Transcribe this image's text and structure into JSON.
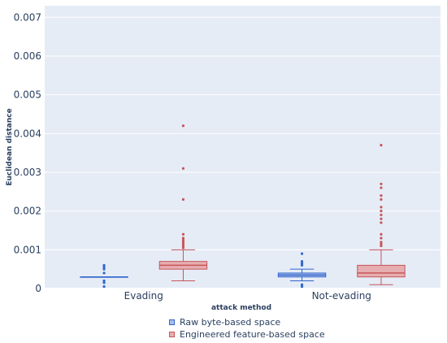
{
  "chart_data": {
    "type": "box",
    "xlabel": "attack method",
    "ylabel": "Euclidean distance",
    "categories": [
      "Evading",
      "Not-evading"
    ],
    "ylim": [
      0,
      0.0073
    ],
    "yticks": [
      0,
      0.001,
      0.002,
      0.003,
      0.004,
      0.005,
      0.006,
      0.007
    ],
    "ytick_labels": [
      "0",
      "0.001",
      "0.002",
      "0.003",
      "0.004",
      "0.005",
      "0.006",
      "0.007"
    ],
    "grid": true,
    "legend_position": "bottom-center",
    "series": [
      {
        "name": "Raw byte-based space",
        "line_color": "#3366cc",
        "fill_color": "#a9bde8",
        "boxes": [
          {
            "category": "Evading",
            "q1": 0.0003,
            "median": 0.0003,
            "q3": 0.0003,
            "whisker_low": 0.0003,
            "whisker_high": 0.0003,
            "outliers": [
              0.0006,
              0.00055,
              0.0005,
              0.0004,
              0.0002,
              0.00015,
              5e-05
            ]
          },
          {
            "category": "Not-evading",
            "q1": 0.0003,
            "median": 0.00035,
            "q3": 0.0004,
            "whisker_low": 0.0002,
            "whisker_high": 0.0005,
            "outliers": [
              0.0009,
              0.0007,
              0.00065,
              0.0006,
              0.0001,
              5e-05
            ]
          }
        ]
      },
      {
        "name": "Engineered feature-based space",
        "line_color": "#c8555a",
        "fill_color": "#e6aeb0",
        "boxes": [
          {
            "category": "Evading",
            "q1": 0.0005,
            "median": 0.0006,
            "q3": 0.0007,
            "whisker_low": 0.0002,
            "whisker_high": 0.001,
            "outliers": [
              0.0042,
              0.0031,
              0.0023,
              0.0014,
              0.0013,
              0.00125,
              0.0012,
              0.00115,
              0.0011,
              0.00105
            ]
          },
          {
            "category": "Not-evading",
            "q1": 0.0003,
            "median": 0.0004,
            "q3": 0.0006,
            "whisker_low": 0.0001,
            "whisker_high": 0.001,
            "outliers": [
              0.0037,
              0.0027,
              0.0026,
              0.0024,
              0.0023,
              0.0021,
              0.002,
              0.0019,
              0.0018,
              0.0017,
              0.0014,
              0.0013,
              0.0012,
              0.00115,
              0.0011
            ]
          }
        ]
      }
    ]
  }
}
